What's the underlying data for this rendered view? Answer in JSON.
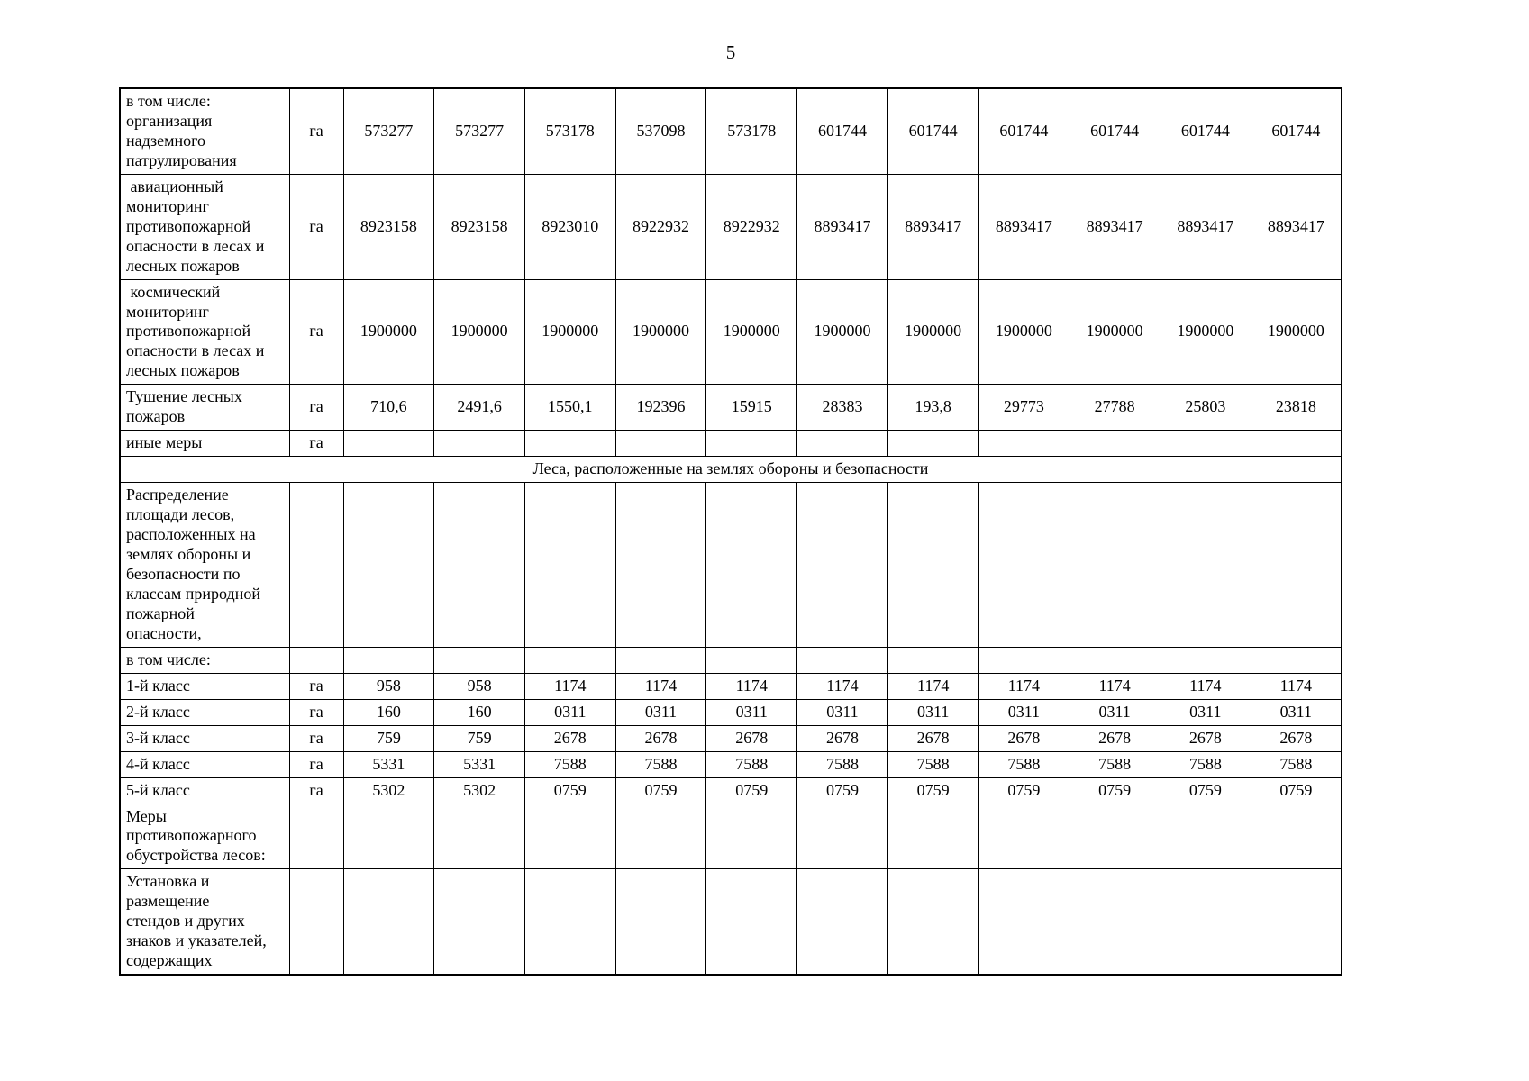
{
  "page": {
    "number": "5"
  },
  "table": {
    "columns": 11,
    "rows": [
      {
        "type": "data",
        "label": "в том числе:\nорганизация\nнадземного\nпатрулирования",
        "unit": "га",
        "values": [
          "573277",
          "573277",
          "573178",
          "537098",
          "573178",
          "601744",
          "601744",
          "601744",
          "601744",
          "601744",
          "601744"
        ]
      },
      {
        "type": "data",
        "label": " авиационный\nмониторинг\nпротивопожарной\nопасности в лесах и\nлесных пожаров",
        "unit": "га",
        "values": [
          "8923158",
          "8923158",
          "8923010",
          "8922932",
          "8922932",
          "8893417",
          "8893417",
          "8893417",
          "8893417",
          "8893417",
          "8893417"
        ]
      },
      {
        "type": "data",
        "label": " космический\nмониторинг\nпротивопожарной\nопасности в лесах и\nлесных пожаров",
        "unit": "га",
        "values": [
          "1900000",
          "1900000",
          "1900000",
          "1900000",
          "1900000",
          "1900000",
          "1900000",
          "1900000",
          "1900000",
          "1900000",
          "1900000"
        ]
      },
      {
        "type": "data",
        "label": "Тушение лесных\nпожаров",
        "unit": "га",
        "values": [
          "710,6",
          "2491,6",
          "1550,1",
          "192396",
          "15915",
          "28383",
          "193,8",
          "29773",
          "27788",
          "25803",
          "23818"
        ]
      },
      {
        "type": "data",
        "label": "иные меры",
        "unit": "га",
        "values": [
          "",
          "",
          "",
          "",
          "",
          "",
          "",
          "",
          "",
          "",
          ""
        ]
      },
      {
        "type": "section",
        "label": "Леса, расположенные на землях обороны и безопасности"
      },
      {
        "type": "data",
        "label": "Распределение\nплощади лесов,\nрасположенных на\nземлях обороны и\nбезопасности по\nклассам природной\nпожарной\nопасности,",
        "unit": "",
        "values": [
          "",
          "",
          "",
          "",
          "",
          "",
          "",
          "",
          "",
          "",
          ""
        ]
      },
      {
        "type": "data",
        "label": "в том числе:",
        "unit": "",
        "values": [
          "",
          "",
          "",
          "",
          "",
          "",
          "",
          "",
          "",
          "",
          ""
        ]
      },
      {
        "type": "data",
        "label": "1-й класс",
        "unit": "га",
        "values": [
          "958",
          "958",
          "1174",
          "1174",
          "1174",
          "1174",
          "1174",
          "1174",
          "1174",
          "1174",
          "1174"
        ]
      },
      {
        "type": "data",
        "label": "2-й класс",
        "unit": "га",
        "values": [
          "160",
          "160",
          "0311",
          "0311",
          "0311",
          "0311",
          "0311",
          "0311",
          "0311",
          "0311",
          "0311"
        ]
      },
      {
        "type": "data",
        "label": "3-й класс",
        "unit": "га",
        "values": [
          "759",
          "759",
          "2678",
          "2678",
          "2678",
          "2678",
          "2678",
          "2678",
          "2678",
          "2678",
          "2678"
        ]
      },
      {
        "type": "data",
        "label": "4-й класс",
        "unit": "га",
        "values": [
          "5331",
          "5331",
          "7588",
          "7588",
          "7588",
          "7588",
          "7588",
          "7588",
          "7588",
          "7588",
          "7588"
        ]
      },
      {
        "type": "data",
        "label": "5-й класс",
        "unit": "га",
        "values": [
          "5302",
          "5302",
          "0759",
          "0759",
          "0759",
          "0759",
          "0759",
          "0759",
          "0759",
          "0759",
          "0759"
        ]
      },
      {
        "type": "data",
        "label": "Меры\nпротивопожарного\nобустройства лесов:",
        "unit": "",
        "values": [
          "",
          "",
          "",
          "",
          "",
          "",
          "",
          "",
          "",
          "",
          ""
        ]
      },
      {
        "type": "data",
        "label": "Установка и\nразмещение\nстендов и других\nзнаков и указателей,\nсодержащих",
        "unit": "",
        "values": [
          "",
          "",
          "",
          "",
          "",
          "",
          "",
          "",
          "",
          "",
          ""
        ]
      }
    ]
  }
}
